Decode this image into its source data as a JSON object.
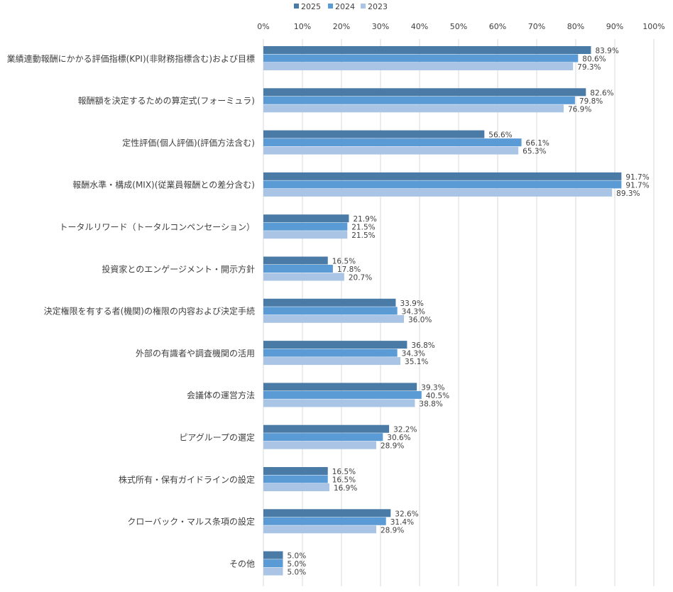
{
  "chart_data": {
    "type": "bar",
    "orientation": "horizontal",
    "categories": [
      "業績連動報酬にかかる評価指標(KPI)(非財務指標含む)および目標",
      "報酬額を決定するための算定式(フォーミュラ)",
      "定性評価(個人評価)(評価方法含む)",
      "報酬水準・構成(MIX)(従業員報酬との差分含む)",
      "トータルリワード（トータルコンペンセーション）",
      "投資家とのエンゲージメント・開示方針",
      "決定権限を有する者(機関)の権限の内容および決定手続",
      "外部の有識者や調査機関の活用",
      "会議体の運営方法",
      "ピアグループの選定",
      "株式所有・保有ガイドラインの設定",
      "クローバック・マルス条項の設定",
      "その他"
    ],
    "series": [
      {
        "name": "2025",
        "color": "#4a7ba6",
        "values": [
          83.9,
          82.6,
          56.6,
          91.7,
          21.9,
          16.5,
          33.9,
          36.8,
          39.3,
          32.2,
          16.5,
          32.6,
          5.0
        ],
        "labels": [
          "83.9%",
          "82.6%",
          "56.6%",
          "91.7%",
          "21.9%",
          "16.5%",
          "33.9%",
          "36.8%",
          "39.3%",
          "32.2%",
          "16.5%",
          "32.6%",
          "5.0%"
        ]
      },
      {
        "name": "2024",
        "color": "#5b9bd5",
        "values": [
          80.6,
          79.8,
          66.1,
          91.7,
          21.5,
          17.8,
          34.3,
          34.3,
          40.5,
          30.6,
          16.5,
          31.4,
          5.0
        ],
        "labels": [
          "80.6%",
          "79.8%",
          "66.1%",
          "91.7%",
          "21.5%",
          "17.8%",
          "34.3%",
          "34.3%",
          "40.5%",
          "30.6%",
          "16.5%",
          "31.4%",
          "5.0%"
        ]
      },
      {
        "name": "2023",
        "color": "#a9c4e4",
        "values": [
          79.3,
          76.9,
          65.3,
          89.3,
          21.5,
          20.7,
          36.0,
          35.1,
          38.8,
          28.9,
          16.9,
          28.9,
          5.0
        ],
        "labels": [
          "79.3%",
          "76.9%",
          "65.3%",
          "89.3%",
          "21.5%",
          "20.7%",
          "36.0%",
          "35.1%",
          "38.8%",
          "28.9%",
          "16.9%",
          "28.9%",
          "5.0%"
        ]
      }
    ],
    "x_ticks": [
      "0%",
      "10%",
      "20%",
      "30%",
      "40%",
      "50%",
      "60%",
      "70%",
      "80%",
      "90%",
      "100%"
    ],
    "xlim": [
      0,
      100
    ],
    "grid": true,
    "legend_position": "top"
  }
}
